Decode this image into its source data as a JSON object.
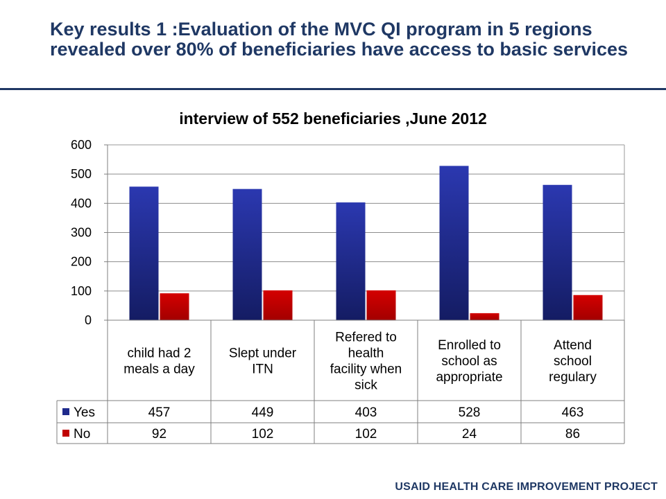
{
  "slide": {
    "title": "Key results 1 :Evaluation of the MVC QI program in 5 regions revealed over 80% of beneficiaries have access to basic services",
    "footer": "USAID HEALTH CARE IMPROVEMENT PROJECT"
  },
  "colors": {
    "title": "#1f3864",
    "yes": "#1f2a8c",
    "no": "#c00000"
  },
  "chart_data": {
    "type": "bar",
    "title": "interview of 552 beneficiaries ,June 2012",
    "categories": [
      [
        "child had 2",
        "meals a day"
      ],
      [
        "Slept under",
        "ITN"
      ],
      [
        "Refered to",
        "health",
        "facility when",
        "sick"
      ],
      [
        "Enrolled to",
        "school as",
        "appropriate"
      ],
      [
        "Attend",
        "school",
        "regulary"
      ]
    ],
    "series": [
      {
        "name": "Yes",
        "values": [
          457,
          449,
          403,
          528,
          463
        ]
      },
      {
        "name": "No",
        "values": [
          92,
          102,
          102,
          24,
          86
        ]
      }
    ],
    "ylim": [
      0,
      600
    ],
    "yticks": [
      0,
      100,
      200,
      300,
      400,
      500,
      600
    ],
    "grid": true,
    "data_table": true
  }
}
